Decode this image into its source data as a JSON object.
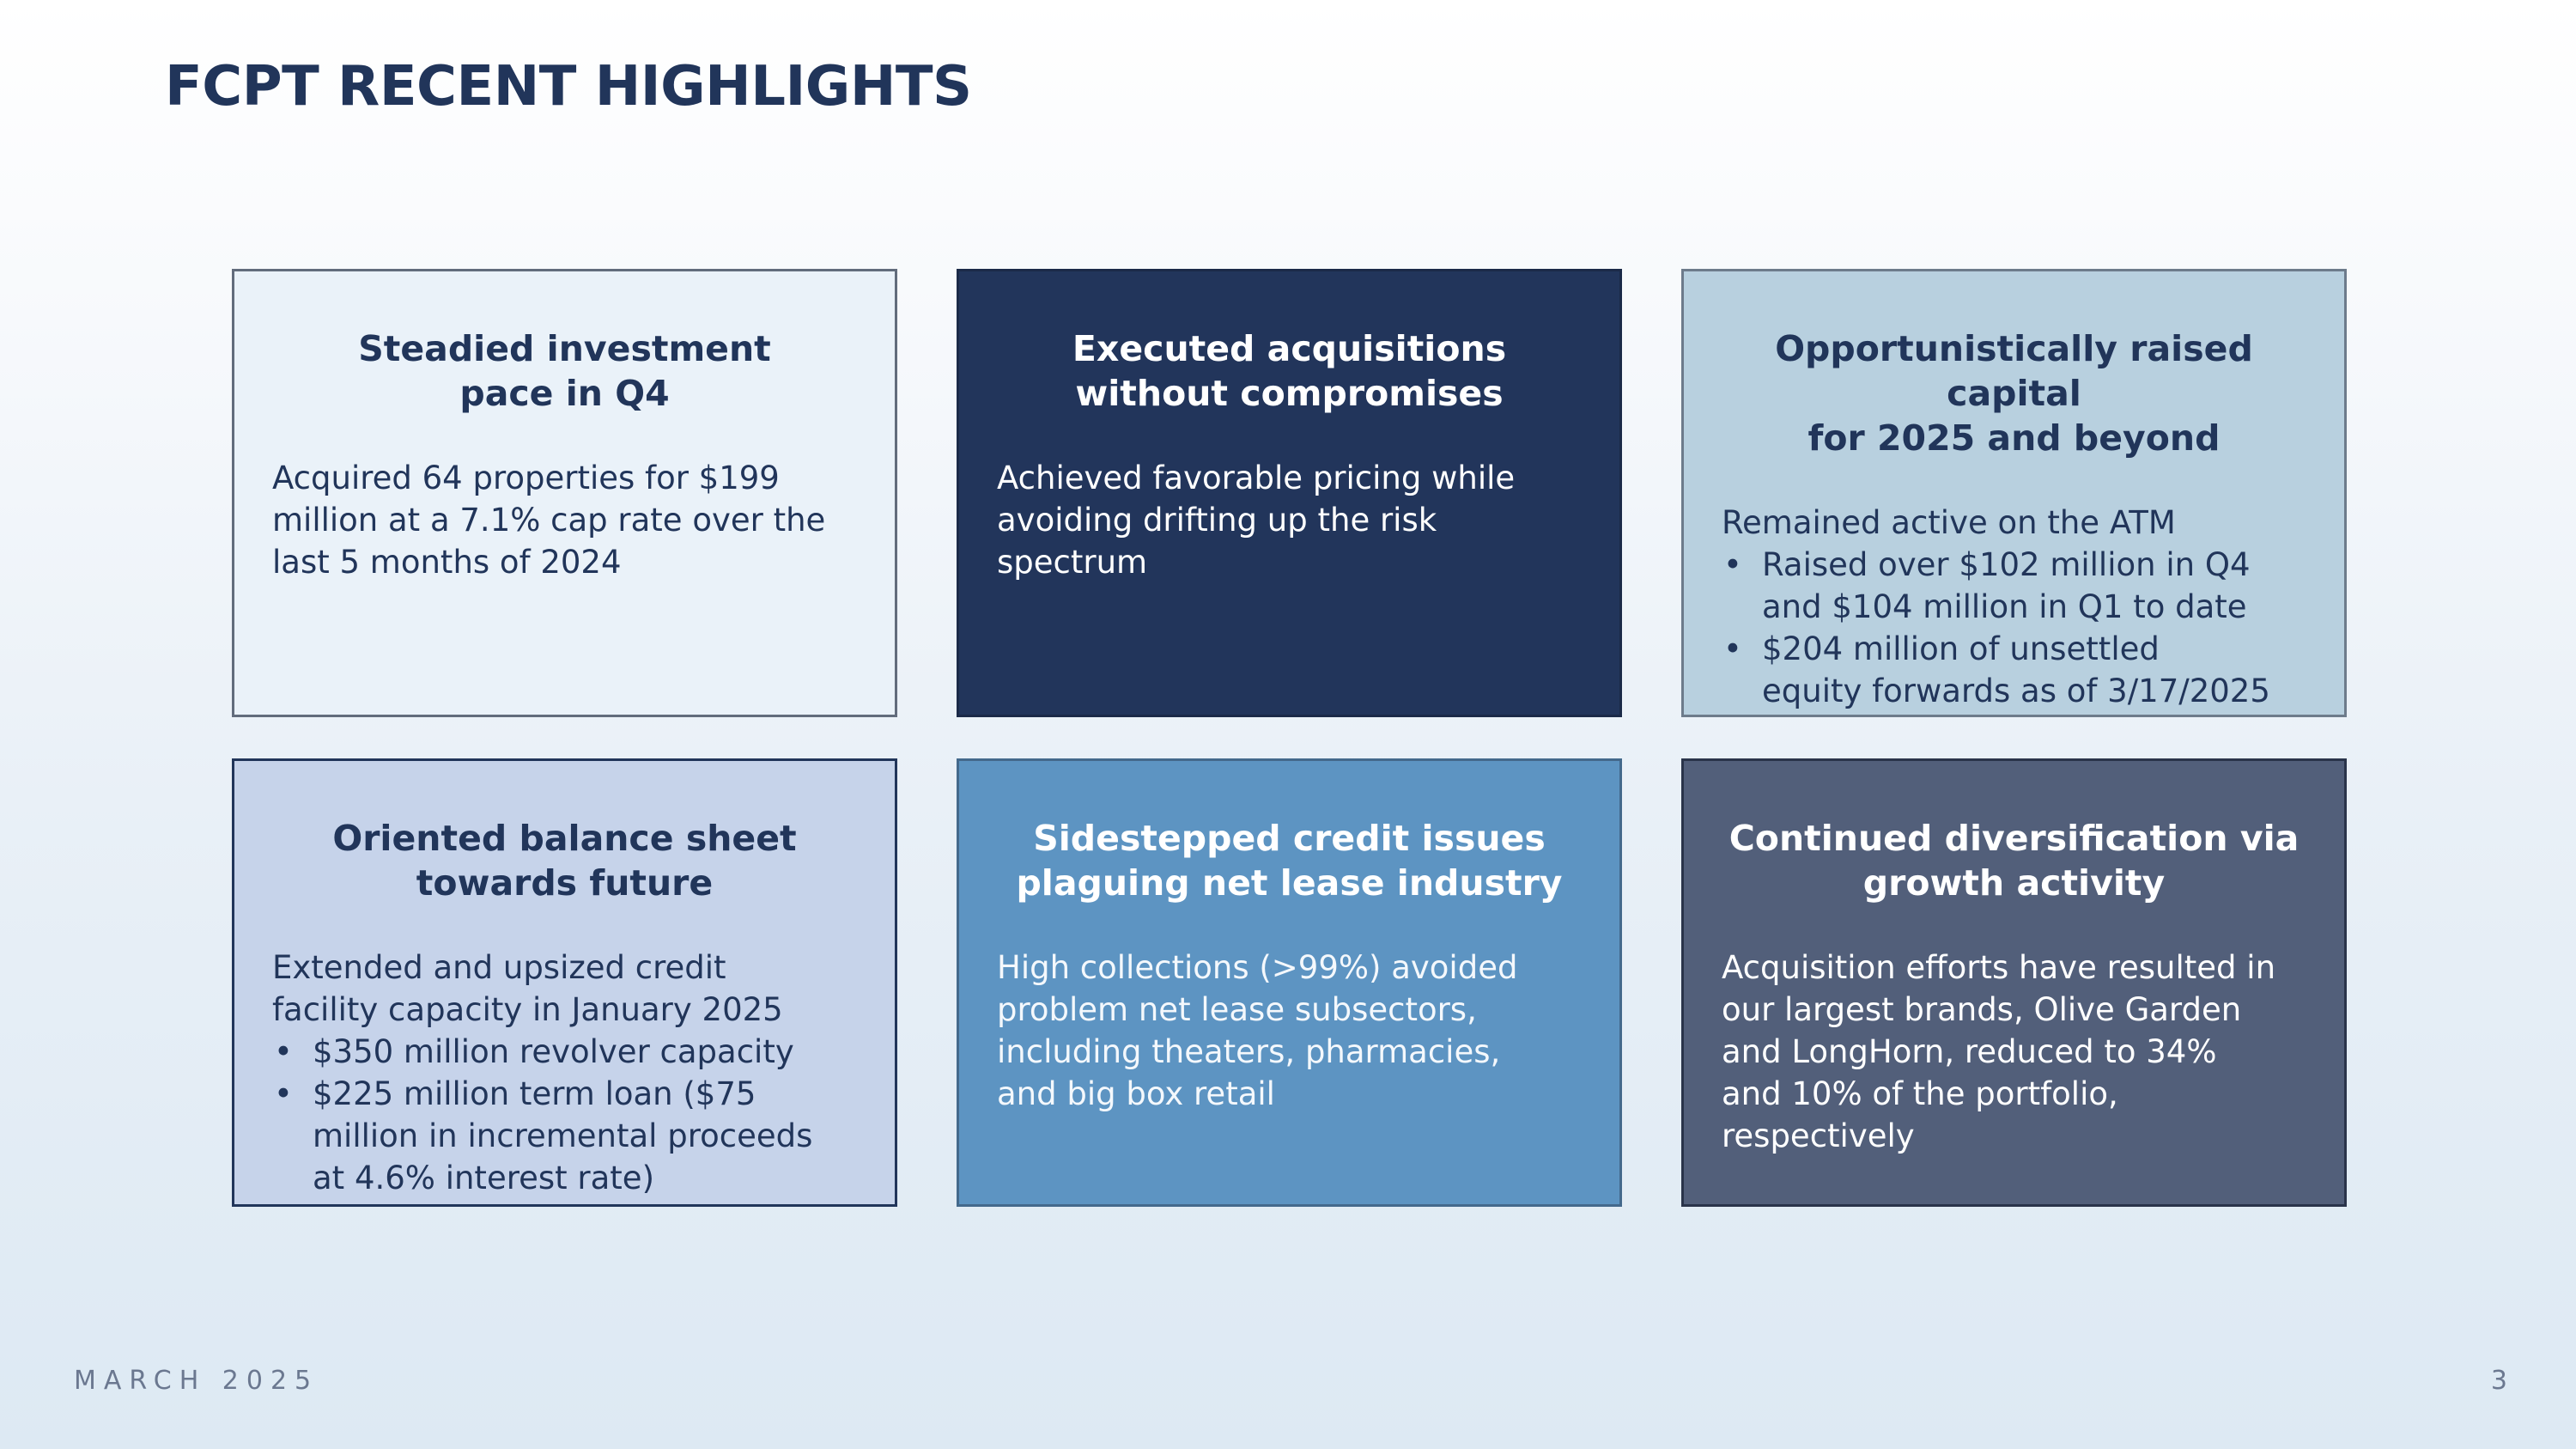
{
  "page": {
    "title": "FCPT RECENT HIGHLIGHTS",
    "footer_date": "MARCH 2025",
    "page_number": "3"
  },
  "colors": {
    "navy": "#22355b",
    "light_blue": "#eaf2f9",
    "pale_steel": "#b8d0df",
    "lavender": "#c6d3ea",
    "mid_blue": "#5d94c2",
    "slate": "#525f7a"
  },
  "cards": [
    {
      "title": "Steadied investment\npace in Q4",
      "body": "Acquired 64 properties for $199\nmillion at a 7.1% cap rate over the\nlast 5 months of 2024"
    },
    {
      "title": "Executed acquisitions\nwithout compromises",
      "body": "Achieved favorable pricing while\navoiding drifting up the risk\nspectrum"
    },
    {
      "title": "Opportunistically raised capital\nfor 2025 and beyond",
      "body": "Remained active on the ATM",
      "bullets": [
        "Raised over $102 million in Q4\nand $104 million in Q1 to date",
        "$204 million of unsettled\nequity forwards as of 3/17/2025"
      ]
    },
    {
      "title": "Oriented balance sheet\ntowards future",
      "body": "Extended and upsized credit\nfacility capacity in January 2025",
      "bullets": [
        "$350 million revolver capacity",
        "$225 million term loan ($75\nmillion in incremental proceeds\nat 4.6% interest rate)"
      ]
    },
    {
      "title": "Sidestepped credit issues\nplaguing net lease industry",
      "body": "High collections (>99%) avoided\nproblem net lease subsectors,\nincluding theaters, pharmacies,\nand big box retail"
    },
    {
      "title": "Continued diversification via\ngrowth activity",
      "body": "Acquisition efforts have resulted in\nour largest brands, Olive Garden\nand LongHorn, reduced to 34%\nand 10% of the portfolio,\nrespectively"
    }
  ]
}
